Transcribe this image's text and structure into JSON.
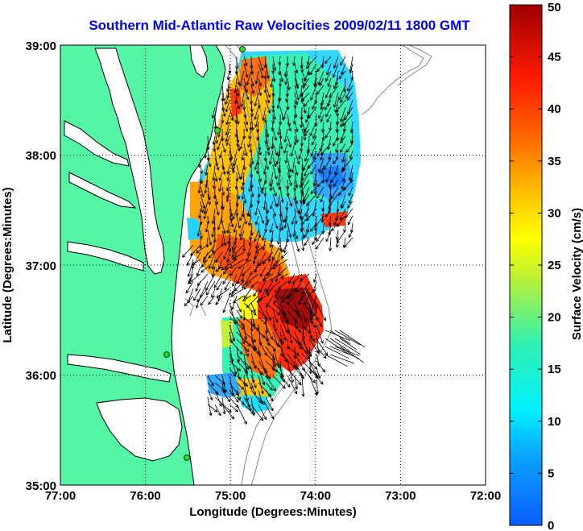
{
  "title": "Southern Mid-Atlantic Raw Velocities 2009/02/11 1800 GMT",
  "xlabel": "Longitude (Degrees:Minutes)",
  "ylabel": "Latitude (Degrees:Minutes)",
  "x_ticks": [
    "77:00",
    "76:00",
    "75:00",
    "74:00",
    "73:00",
    "72:00"
  ],
  "y_ticks": [
    "39:00",
    "38:00",
    "37:00",
    "36:00",
    "35:00"
  ],
  "colorbar": {
    "label": "Surface Velocity (cm/s)",
    "ticks": [
      "0",
      "5",
      "10",
      "15",
      "20",
      "25",
      "30",
      "35",
      "40",
      "45",
      "50"
    ],
    "range": [
      0,
      50
    ]
  },
  "colors": {
    "land": "#55f5a6",
    "ocean": "#ffffff",
    "title": "#0000ff",
    "station": "#22dd22"
  }
}
